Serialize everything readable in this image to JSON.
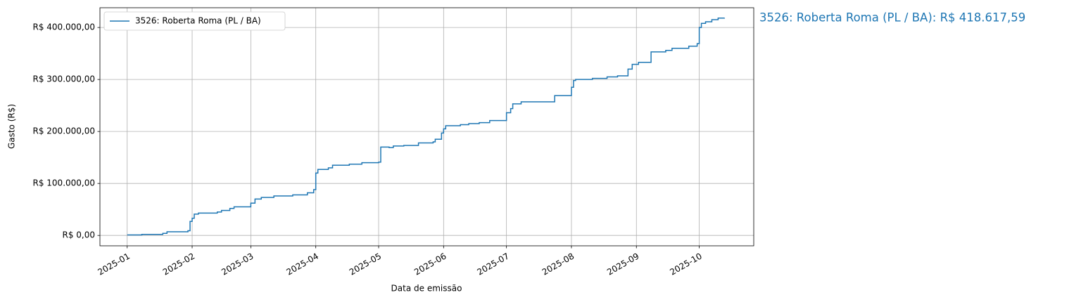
{
  "chart_data": {
    "type": "step",
    "xlabel": "Data de emissão",
    "ylabel": "Gasto (R$)",
    "annotation": "3526: Roberta Roma (PL / BA): R$ 418.617,59",
    "xlim": [
      -13,
      299
    ],
    "ylim": [
      -20000,
      438000
    ],
    "xticks": [
      {
        "value": 0,
        "label": "2025-01"
      },
      {
        "value": 31,
        "label": "2025-02"
      },
      {
        "value": 59,
        "label": "2025-03"
      },
      {
        "value": 90,
        "label": "2025-04"
      },
      {
        "value": 120,
        "label": "2025-05"
      },
      {
        "value": 151,
        "label": "2025-06"
      },
      {
        "value": 181,
        "label": "2025-07"
      },
      {
        "value": 212,
        "label": "2025-08"
      },
      {
        "value": 243,
        "label": "2025-09"
      },
      {
        "value": 273,
        "label": "2025-10"
      }
    ],
    "yticks": [
      {
        "value": 0,
        "label": "R$ 0,00"
      },
      {
        "value": 100000,
        "label": "R$ 100.000,00"
      },
      {
        "value": 200000,
        "label": "R$ 200.000,00"
      },
      {
        "value": 300000,
        "label": "R$ 300.000,00"
      },
      {
        "value": 400000,
        "label": "R$ 400.000,00"
      }
    ],
    "grid": true,
    "legend": "upper left",
    "series": [
      {
        "name": "3526: Roberta Roma (PL / BA)",
        "color": "#1f77b4",
        "x": [
          0,
          7,
          17,
          19,
          29,
          30,
          31,
          32,
          34,
          43,
          45,
          49,
          51,
          59,
          61,
          64,
          70,
          79,
          86,
          89,
          90,
          91,
          96,
          98,
          106,
          112,
          120,
          121,
          125,
          127,
          132,
          139,
          146,
          147,
          150,
          151,
          152,
          159,
          163,
          168,
          173,
          181,
          183,
          184,
          188,
          204,
          212,
          213,
          214,
          222,
          229,
          234,
          239,
          241,
          244,
          250,
          257,
          260,
          268,
          272,
          273,
          274,
          276,
          279,
          282,
          285
        ],
        "values": [
          1000,
          2000,
          4000,
          7000,
          9000,
          27000,
          33000,
          41000,
          43000,
          45000,
          48000,
          52000,
          55000,
          62000,
          70000,
          73000,
          76000,
          78000,
          82000,
          88000,
          120000,
          127000,
          130000,
          135000,
          137000,
          140000,
          141000,
          170000,
          169000,
          172000,
          173000,
          178000,
          180000,
          185000,
          197000,
          205000,
          211000,
          213000,
          215000,
          217000,
          221000,
          236000,
          244000,
          253000,
          257000,
          269000,
          285000,
          298000,
          300000,
          302000,
          305000,
          307000,
          320000,
          329000,
          333000,
          353000,
          356000,
          360000,
          364000,
          369000,
          400000,
          408000,
          411000,
          415000,
          418000,
          418617.59
        ]
      }
    ]
  }
}
